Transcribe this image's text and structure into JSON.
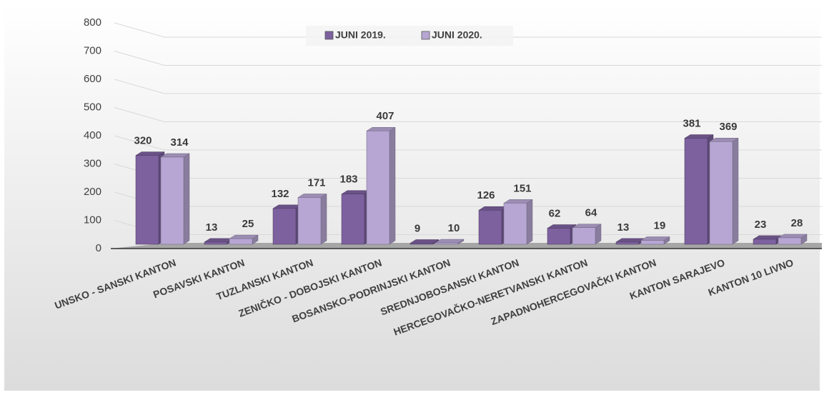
{
  "chart_data": {
    "type": "bar3d",
    "categories": [
      "UNSKO - SANSKI KANTON",
      "POSAVSKI KANTON",
      "TUZLANSKI KANTON",
      "ZENIČKO - DOBOJSKI KANTON",
      "BOSANSKO-PODRINJSKI KANTON",
      "SREDNJOBOSANSKI KANTON",
      "HERCEGOVAČKO-NERETVANSKI KANTON",
      "ZAPADNOHERCEGOVAČKI KANTON",
      "KANTON SARAJEVO",
      "KANTON 10 LIVNO"
    ],
    "series": [
      {
        "name": "JUNI 2019.",
        "color": "#7d619f",
        "values": [
          320,
          13,
          132,
          183,
          9,
          126,
          62,
          13,
          381,
          23
        ]
      },
      {
        "name": "JUNI 2020.",
        "color": "#b7a6d3",
        "values": [
          314,
          25,
          171,
          407,
          10,
          151,
          64,
          19,
          369,
          28
        ]
      }
    ],
    "ylim": [
      0,
      800
    ],
    "yticks": [
      0,
      100,
      200,
      300,
      400,
      500,
      600,
      700,
      800
    ],
    "grid": true,
    "legend": "top"
  }
}
